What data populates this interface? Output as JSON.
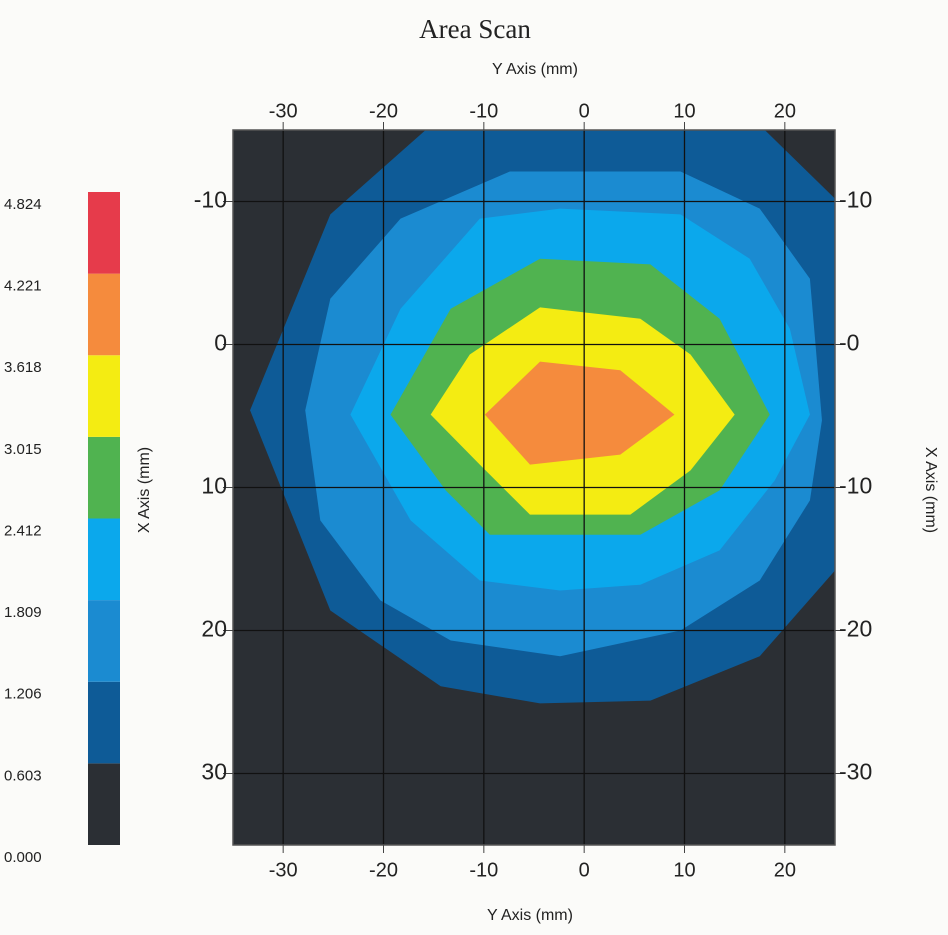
{
  "chart_data": {
    "type": "contour",
    "title": "Area Scan",
    "xlabel": "Y Axis (mm)",
    "ylabel": "X Axis (mm)",
    "xlim": [
      -35,
      25
    ],
    "ylim": [
      35,
      -15
    ],
    "xticks": [
      -30,
      -20,
      -10,
      0,
      10,
      20
    ],
    "yticks": [
      -10,
      0,
      10,
      20,
      30
    ],
    "y2lim": [
      35,
      -15
    ],
    "y2ticks": [
      {
        "value": -10,
        "label": "-10"
      },
      {
        "value": 0,
        "label": "-0"
      },
      {
        "value": 10,
        "label": "-10"
      },
      {
        "value": 20,
        "label": "-20"
      },
      {
        "value": 30,
        "label": "-30"
      }
    ],
    "grid": true,
    "levels": [
      {
        "value": 0,
        "label": "0.000"
      },
      0.603,
      1.206,
      1.809,
      2.412,
      3.015,
      3.618,
      4.221,
      4.824
    ],
    "colors": [
      "#2b2f34",
      "#0e5b97",
      "#1b8bd1",
      "#0ba8ec",
      "#50b350",
      "#f4ec12",
      "#f58b3d",
      "#e63b4b"
    ],
    "contours": [
      {
        "x": [
          -15.8,
          18.0,
          25,
          25,
          17.5,
          6.6,
          -4.4,
          -14.3,
          -25.3,
          -33.3,
          -25.3
        ],
        "y": [
          -15,
          -15,
          -10.2,
          15.8,
          21.8,
          24.9,
          25.1,
          23.9,
          18.6,
          4.6,
          -9.1
        ]
      },
      {
        "x": [
          -7.4,
          9.6,
          17.5,
          22.5,
          23.7,
          22.5,
          17.5,
          9.6,
          -2.4,
          -13.3,
          -20.3,
          -26.3,
          -27.8,
          -25.3,
          -18.3
        ],
        "y": [
          -12.1,
          -12.1,
          -9.5,
          -4.6,
          5.3,
          10.9,
          16.5,
          20,
          21.8,
          20.7,
          17.9,
          12.3,
          4.6,
          -3.2,
          -8.8
        ]
      },
      {
        "x": [
          -10.4,
          -2.4,
          9.6,
          16.5,
          20.5,
          22.5,
          19,
          13.5,
          5.6,
          -2.4,
          -10.4,
          -17.3,
          -23.3,
          -18.3
        ],
        "y": [
          -8.8,
          -9.5,
          -9.1,
          -6,
          -1.1,
          4.9,
          9.5,
          14.4,
          16.8,
          17.2,
          16.5,
          12.3,
          4.9,
          -2.5
        ]
      },
      {
        "x": [
          -4.4,
          6.6,
          13.5,
          18.5,
          13.5,
          5.6,
          -9.4,
          -13.8,
          -19.3,
          -13.3
        ],
        "y": [
          -6,
          -5.6,
          -1.8,
          4.9,
          10.2,
          13.3,
          13.3,
          10.2,
          4.9,
          -2.5
        ]
      },
      {
        "x": [
          -4.4,
          5.6,
          10.6,
          15,
          10.6,
          4.6,
          -5.4,
          -10.4,
          -15.3,
          -11.4
        ],
        "y": [
          -2.6,
          -1.8,
          0.7,
          4.9,
          8.8,
          11.9,
          11.9,
          8.4,
          4.9,
          0.7
        ]
      },
      {
        "x": [
          -4.4,
          3.6,
          9.0,
          3.6,
          -5.4,
          -9.9
        ],
        "y": [
          1.2,
          1.8,
          4.9,
          7.7,
          8.4,
          4.9
        ]
      }
    ]
  }
}
